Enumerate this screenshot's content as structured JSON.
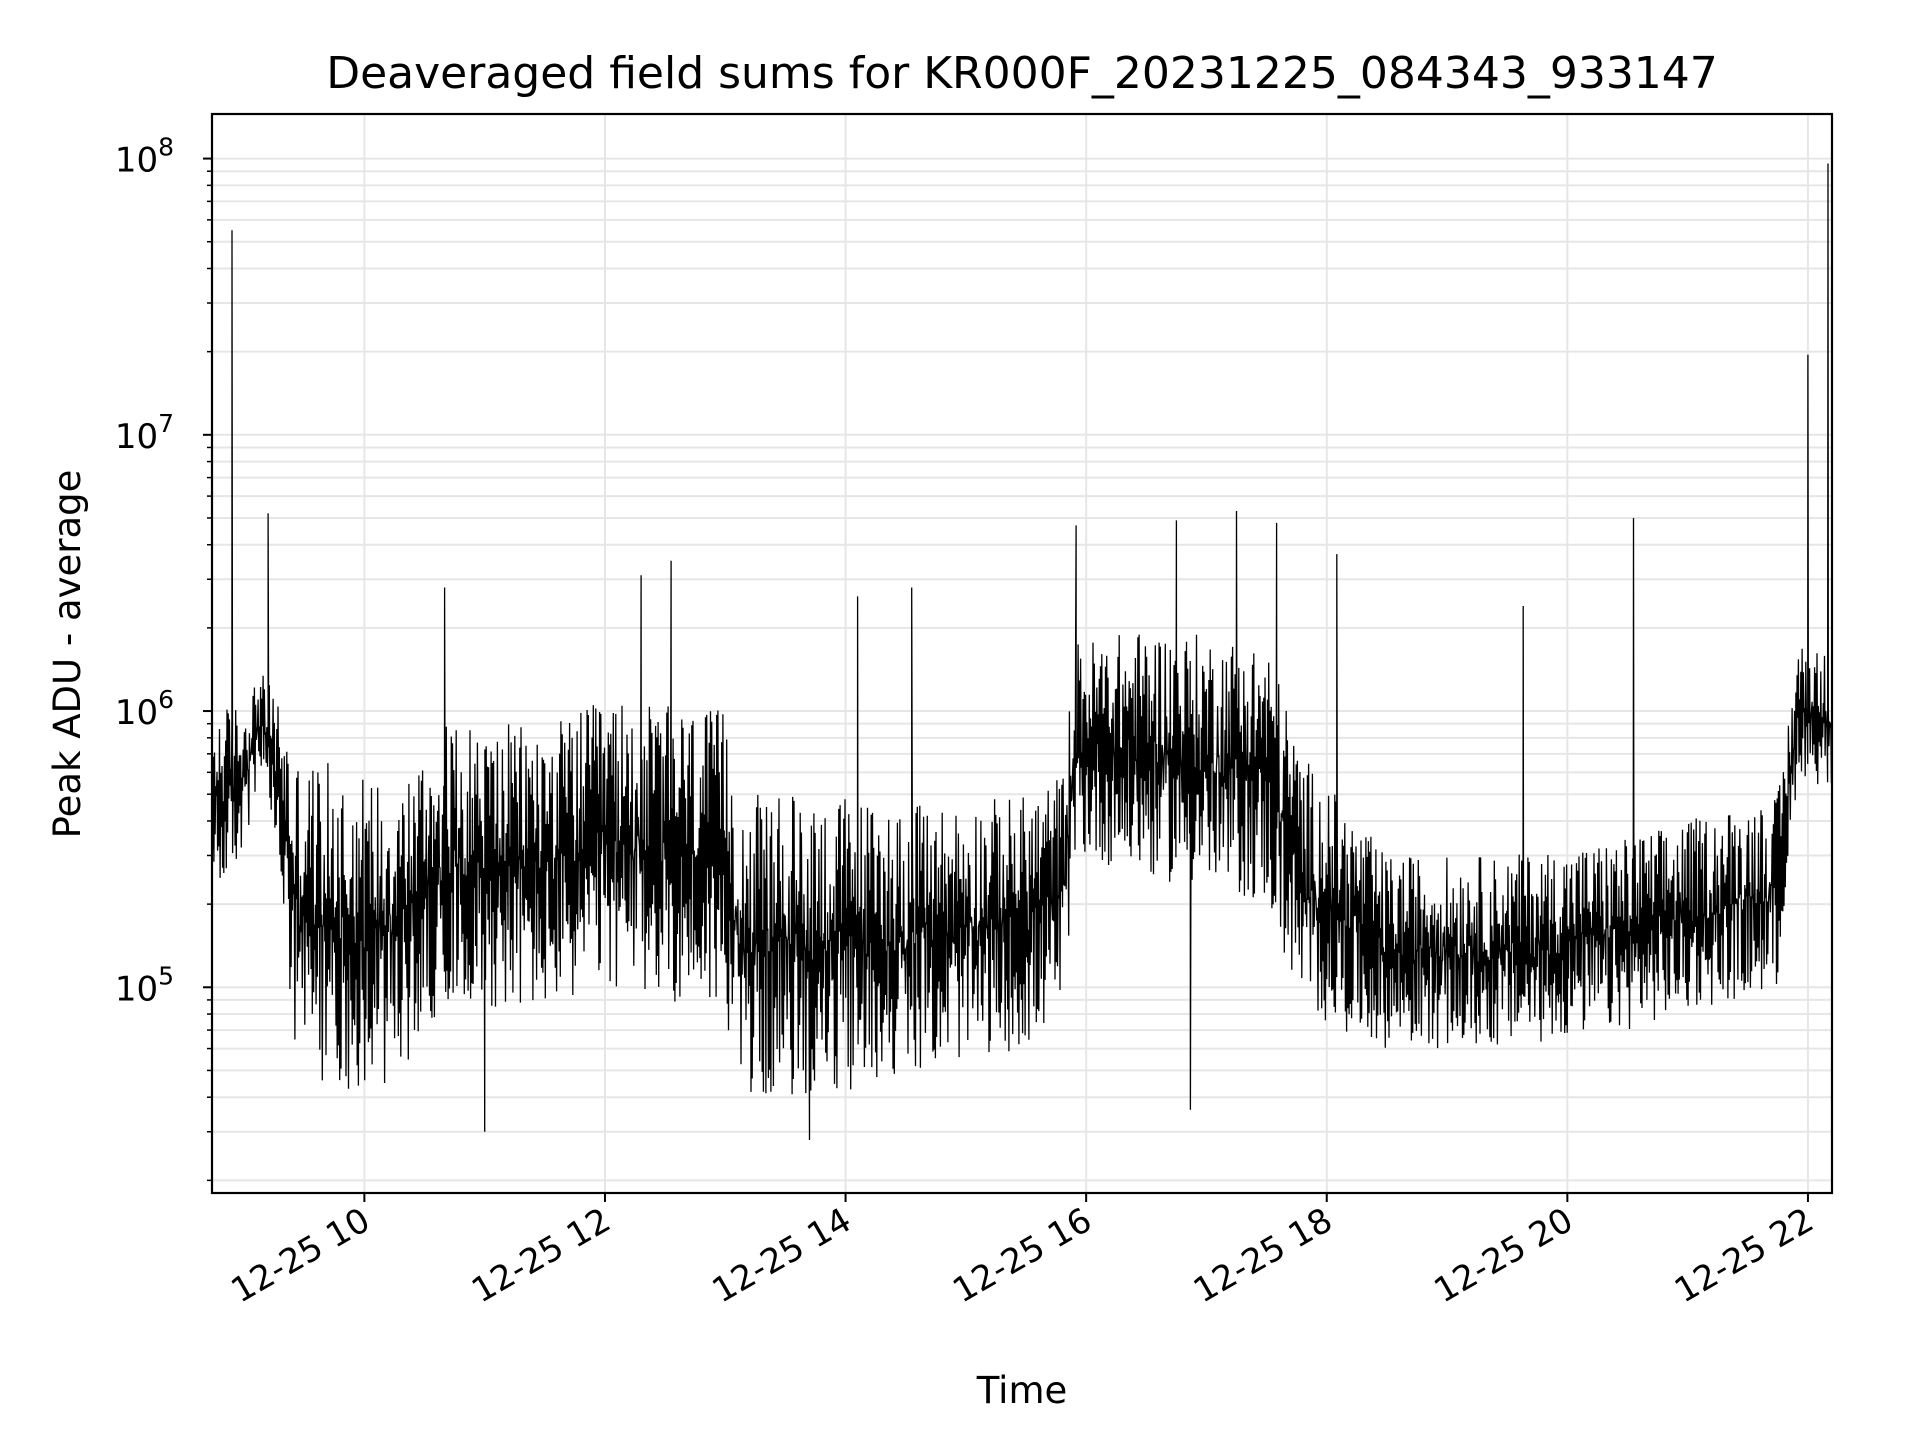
{
  "chart_data": {
    "type": "line",
    "title": "Deaveraged field sums for KR000F_20231225_084343_933147",
    "xlabel": "Time",
    "ylabel": "Peak ADU - average",
    "yscale": "log",
    "ylim": [
      18000,
      145000000
    ],
    "xlim": [
      "2023-12-25 08:44",
      "2023-12-25 22:12"
    ],
    "grid": "major and minor",
    "line_color": "#000000",
    "grid_color": "#e6e6e6",
    "x_ticks": [
      {
        "t": "2023-12-25 10:00",
        "label": "12-25 10"
      },
      {
        "t": "2023-12-25 12:00",
        "label": "12-25 12"
      },
      {
        "t": "2023-12-25 14:00",
        "label": "12-25 14"
      },
      {
        "t": "2023-12-25 16:00",
        "label": "12-25 16"
      },
      {
        "t": "2023-12-25 18:00",
        "label": "12-25 18"
      },
      {
        "t": "2023-12-25 20:00",
        "label": "12-25 20"
      },
      {
        "t": "2023-12-25 22:00",
        "label": "12-25 22"
      }
    ],
    "y_ticks": [
      {
        "value": 100000,
        "base": "10",
        "exp": "5"
      },
      {
        "value": 1000000,
        "base": "10",
        "exp": "6"
      },
      {
        "value": 10000000,
        "base": "10",
        "exp": "7"
      },
      {
        "value": 100000000,
        "base": "10",
        "exp": "8"
      }
    ],
    "series": [
      {
        "envelope": [
          {
            "t": "2023-12-25 08:44",
            "low": 200000,
            "high": 1000000
          },
          {
            "t": "2023-12-25 09:00",
            "low": 300000,
            "high": 1100000
          },
          {
            "t": "2023-12-25 09:08",
            "low": 600000,
            "high": 1400000
          },
          {
            "t": "2023-12-25 09:18",
            "low": 250000,
            "high": 1100000
          },
          {
            "t": "2023-12-25 09:25",
            "low": 50000,
            "high": 700000
          },
          {
            "t": "2023-12-25 10:00",
            "low": 40000,
            "high": 600000
          },
          {
            "t": "2023-12-25 10:20",
            "low": 50000,
            "high": 600000
          },
          {
            "t": "2023-12-25 10:40",
            "low": 90000,
            "high": 900000
          },
          {
            "t": "2023-12-25 11:30",
            "low": 80000,
            "high": 900000
          },
          {
            "t": "2023-12-25 12:00",
            "low": 100000,
            "high": 1100000
          },
          {
            "t": "2023-12-25 13:00",
            "low": 80000,
            "high": 1000000
          },
          {
            "t": "2023-12-25 13:08",
            "low": 40000,
            "high": 500000
          },
          {
            "t": "2023-12-25 14:00",
            "low": 40000,
            "high": 500000
          },
          {
            "t": "2023-12-25 14:30",
            "low": 50000,
            "high": 450000
          },
          {
            "t": "2023-12-25 15:30",
            "low": 60000,
            "high": 500000
          },
          {
            "t": "2023-12-25 15:48",
            "low": 80000,
            "high": 600000
          },
          {
            "t": "2023-12-25 15:55",
            "low": 300000,
            "high": 1800000
          },
          {
            "t": "2023-12-25 16:30",
            "low": 250000,
            "high": 2000000
          },
          {
            "t": "2023-12-25 17:30",
            "low": 200000,
            "high": 1800000
          },
          {
            "t": "2023-12-25 17:48",
            "low": 80000,
            "high": 700000
          },
          {
            "t": "2023-12-25 18:30",
            "low": 60000,
            "high": 300000
          },
          {
            "t": "2023-12-25 19:30",
            "low": 60000,
            "high": 300000
          },
          {
            "t": "2023-12-25 20:30",
            "low": 70000,
            "high": 350000
          },
          {
            "t": "2023-12-25 21:45",
            "low": 100000,
            "high": 500000
          },
          {
            "t": "2023-12-25 21:55",
            "low": 600000,
            "high": 1800000
          },
          {
            "t": "2023-12-25 22:12",
            "low": 500000,
            "high": 1600000
          }
        ],
        "spikes": [
          {
            "t": "2023-12-25 08:54",
            "value": 55000000
          },
          {
            "t": "2023-12-25 09:12",
            "value": 5200000
          },
          {
            "t": "2023-12-25 10:40",
            "value": 2800000
          },
          {
            "t": "2023-12-25 11:00",
            "value": 30000
          },
          {
            "t": "2023-12-25 12:18",
            "value": 3100000
          },
          {
            "t": "2023-12-25 12:33",
            "value": 3500000
          },
          {
            "t": "2023-12-25 13:42",
            "value": 28000
          },
          {
            "t": "2023-12-25 14:06",
            "value": 2600000
          },
          {
            "t": "2023-12-25 14:33",
            "value": 2800000
          },
          {
            "t": "2023-12-25 15:55",
            "value": 4700000
          },
          {
            "t": "2023-12-25 16:45",
            "value": 4900000
          },
          {
            "t": "2023-12-25 16:52",
            "value": 36000
          },
          {
            "t": "2023-12-25 17:15",
            "value": 5300000
          },
          {
            "t": "2023-12-25 17:35",
            "value": 4800000
          },
          {
            "t": "2023-12-25 18:05",
            "value": 3700000
          },
          {
            "t": "2023-12-25 19:38",
            "value": 2400000
          },
          {
            "t": "2023-12-25 20:33",
            "value": 5000000
          },
          {
            "t": "2023-12-25 22:00",
            "value": 19500000
          },
          {
            "t": "2023-12-25 22:10",
            "value": 96000000
          }
        ]
      }
    ]
  }
}
